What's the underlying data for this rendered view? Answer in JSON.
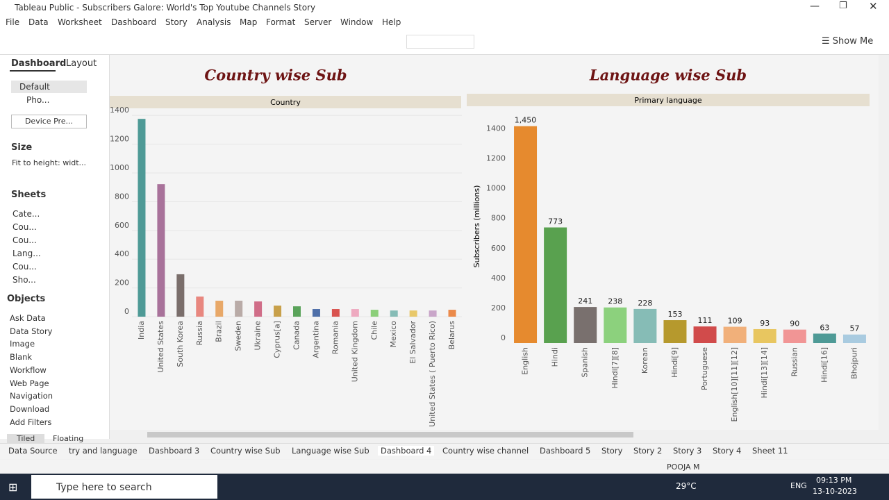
{
  "window": {
    "title": "Tableau Public - Subscribers Galore: World's Top Youtube Channels Story"
  },
  "menu": [
    "File",
    "Data",
    "Worksheet",
    "Dashboard",
    "Story",
    "Analysis",
    "Map",
    "Format",
    "Server",
    "Window",
    "Help"
  ],
  "toolbar": {
    "show_me": "Show Me"
  },
  "sidebar": {
    "tabs": [
      "Dashboard",
      "Layout"
    ],
    "device": [
      "Default",
      "Pho...",
      "Device Pre..."
    ],
    "size_title": "Size",
    "size_value": "Fit to height: widt...",
    "sheets_title": "Sheets",
    "sheets": [
      "Cate...",
      "Cou...",
      "Cou...",
      "Lang...",
      "Cou...",
      "Sho..."
    ],
    "objects_title": "Objects",
    "objects": [
      "Ask Data",
      "Data Story",
      "Image",
      "Blank",
      "Workflow",
      "Web Page",
      "Navigation",
      "Download",
      "Add Filters"
    ],
    "layout_tabs": [
      "Tiled",
      "Floating"
    ]
  },
  "chart_data": [
    {
      "type": "bar",
      "title": "Country wise Sub",
      "header": "Country",
      "categories": [
        "India",
        "United States",
        "South Korea",
        "Russia",
        "Brazil",
        "Sweden",
        "Ukraine",
        "Cyprus[a]",
        "Canada",
        "Argentina",
        "Romania",
        "United Kingdom",
        "Chile",
        "Mexico",
        "El Salvador",
        "United States ( Puerto Rico)",
        "Belarus"
      ],
      "values": [
        1376,
        922,
        295,
        140,
        111,
        111,
        106,
        77,
        72,
        53,
        53,
        53,
        48,
        43,
        43,
        43,
        48
      ],
      "colors": [
        "#4e9a96",
        "#a8729a",
        "#7a6e6b",
        "#e8877f",
        "#e8a868",
        "#b9aba7",
        "#d06d88",
        "#c8a04a",
        "#5aa35a",
        "#4e6fa8",
        "#d9534f",
        "#eeaac0",
        "#8ccf7a",
        "#86bcb6",
        "#e8c86a",
        "#c9a6c9",
        "#eb8a4a"
      ],
      "ylim": [
        0,
        1430
      ],
      "yticks": [
        0,
        200,
        400,
        600,
        800,
        1000,
        1200,
        1400
      ],
      "grid": true
    },
    {
      "type": "bar",
      "title": "Language wise Sub",
      "header": "Primary language",
      "ylabel": "Subscribers (millions)",
      "categories": [
        "English",
        "Hindi",
        "Spanish",
        "Hindi[7][8]",
        "Korean",
        "Hindi[9]",
        "Portuguese",
        "English[10][11][12]",
        "Hindi[13][14]",
        "Russian",
        "Hindi[16]",
        "Bhojpuri"
      ],
      "values": [
        1450,
        773,
        241,
        238,
        228,
        153,
        111,
        109,
        93,
        90,
        63,
        57
      ],
      "value_labels": [
        "1,450",
        "773",
        "241",
        "238",
        "228",
        "153",
        "111",
        "109",
        "93",
        "90",
        "63",
        "57"
      ],
      "colors": [
        "#e68a2e",
        "#59a14f",
        "#79706e",
        "#8cd17d",
        "#86bcb6",
        "#b6992d",
        "#d14b4b",
        "#f1b07a",
        "#e8c660",
        "#f19595",
        "#4e9a96",
        "#a9cbe0"
      ],
      "ylim": [
        0,
        1560
      ],
      "yticks": [
        0,
        200,
        400,
        600,
        800,
        1000,
        1200,
        1400
      ],
      "grid": false
    }
  ],
  "tabs": [
    "Data Source",
    "try and language",
    "Dashboard 3",
    "Country wise Sub",
    "Language wise Sub",
    "Dashboard 4",
    "Country wise channel",
    "Dashboard 5",
    "Story",
    "Story 2",
    "Story 3",
    "Story 4",
    "Sheet 11"
  ],
  "status": {
    "user": "POOJA M"
  },
  "taskbar": {
    "search": "Type here to search",
    "weather": "29°C",
    "lang": "ENG",
    "time": "09:13 PM",
    "date": "13-10-2023"
  }
}
